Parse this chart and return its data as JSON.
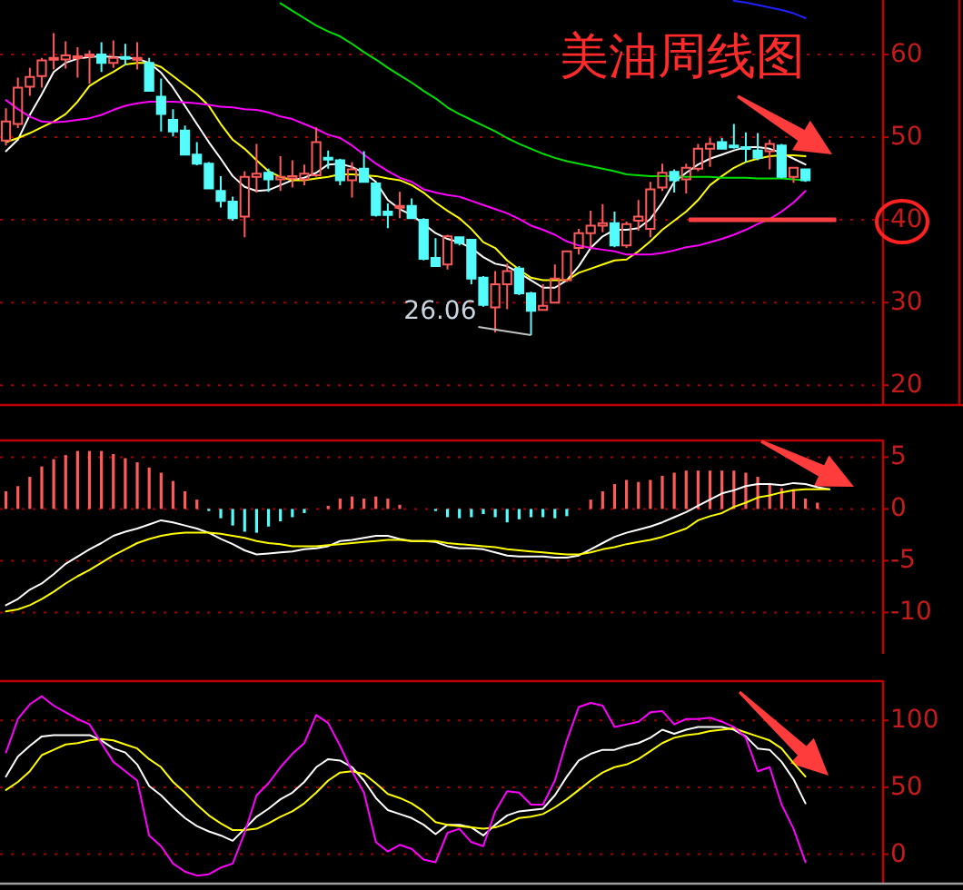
{
  "chart_data": [
    {
      "type": "candlestick",
      "title": "美油周线图",
      "tick_labels": "y",
      "grid": "y",
      "ylim": [
        17.6,
        66.6
      ],
      "yticks": [
        20,
        30,
        40,
        50,
        60
      ],
      "categories": [
        null,
        null,
        null,
        null,
        null,
        null,
        null,
        null,
        null,
        null,
        null,
        null,
        null,
        null,
        null,
        null,
        null,
        null,
        null,
        null,
        null,
        null,
        null,
        null,
        null,
        null,
        null,
        null,
        null,
        null,
        null,
        null,
        null,
        null,
        null,
        null,
        null,
        null,
        null,
        null,
        null,
        null,
        null,
        null,
        null,
        null,
        null,
        null,
        null,
        null,
        null,
        null,
        null,
        null,
        null,
        null,
        null,
        null,
        null,
        null,
        null,
        null,
        null,
        null,
        null,
        null,
        null,
        null,
        null,
        null,
        null,
        null,
        null,
        null
      ],
      "ohlc": [
        [
          49.6,
          53.5,
          49.0,
          51.9
        ],
        [
          51.6,
          57.2,
          51.1,
          56.0
        ],
        [
          56.1,
          58.4,
          55.0,
          57.3
        ],
        [
          57.4,
          59.6,
          56.0,
          59.3
        ],
        [
          59.5,
          62.6,
          58.2,
          59.6
        ],
        [
          59.4,
          61.6,
          58.3,
          59.9
        ],
        [
          59.6,
          60.9,
          57.2,
          59.8
        ],
        [
          59.8,
          60.5,
          56.5,
          60.0
        ],
        [
          60.0,
          61.5,
          57.9,
          59.0
        ],
        [
          59.0,
          61.7,
          58.4,
          59.6
        ],
        [
          59.7,
          61.3,
          58.7,
          59.5
        ],
        [
          59.4,
          61.5,
          58.2,
          59.6
        ],
        [
          59.0,
          59.6,
          55.5,
          55.6
        ],
        [
          54.9,
          57.1,
          50.7,
          52.8
        ],
        [
          52.1,
          53.4,
          50.1,
          50.7
        ],
        [
          50.8,
          51.4,
          47.8,
          47.9
        ],
        [
          47.9,
          49.4,
          46.6,
          46.8
        ],
        [
          46.8,
          47.0,
          43.7,
          43.8
        ],
        [
          43.5,
          45.3,
          41.5,
          42.3
        ],
        [
          42.2,
          42.8,
          39.9,
          40.2
        ],
        [
          40.4,
          45.9,
          37.9,
          45.2
        ],
        [
          45.2,
          49.2,
          43.3,
          45.6
        ],
        [
          45.7,
          46.2,
          43.4,
          44.9
        ],
        [
          44.9,
          47.7,
          43.5,
          45.2
        ],
        [
          45.0,
          47.2,
          43.9,
          45.3
        ],
        [
          44.9,
          46.7,
          44.2,
          45.6
        ],
        [
          45.4,
          51.2,
          45.2,
          49.4
        ],
        [
          47.5,
          48.4,
          46.2,
          47.3
        ],
        [
          47.2,
          47.4,
          44.2,
          44.8
        ],
        [
          44.8,
          47.0,
          42.7,
          46.1
        ],
        [
          46.2,
          48.3,
          44.5,
          44.6
        ],
        [
          44.4,
          44.6,
          40.4,
          40.6
        ],
        [
          41.0,
          42.0,
          39.0,
          40.6
        ],
        [
          41.5,
          43.4,
          40.2,
          41.7
        ],
        [
          41.7,
          42.6,
          40.1,
          40.2
        ],
        [
          40.0,
          40.2,
          35.1,
          35.3
        ],
        [
          35.4,
          37.8,
          34.3,
          34.4
        ],
        [
          34.6,
          38.2,
          34.0,
          38.0
        ],
        [
          37.9,
          38.0,
          36.9,
          37.2
        ],
        [
          37.6,
          37.7,
          32.2,
          32.9
        ],
        [
          33.0,
          33.2,
          29.5,
          29.7
        ],
        [
          29.4,
          33.8,
          26.4,
          32.2
        ],
        [
          32.2,
          34.7,
          29.2,
          33.8
        ],
        [
          34.1,
          34.4,
          30.9,
          31.1
        ],
        [
          31.1,
          31.3,
          26.06,
          29.0
        ],
        [
          29.1,
          32.2,
          29.1,
          29.6
        ],
        [
          30.0,
          34.6,
          30.0,
          32.9
        ],
        [
          32.7,
          36.3,
          32.5,
          36.2
        ],
        [
          36.6,
          38.9,
          35.8,
          38.4
        ],
        [
          38.4,
          41.1,
          36.6,
          39.3
        ],
        [
          39.3,
          41.9,
          38.5,
          39.6
        ],
        [
          39.6,
          41.0,
          36.7,
          36.9
        ],
        [
          36.9,
          39.8,
          36.6,
          39.5
        ],
        [
          39.9,
          42.4,
          38.7,
          40.4
        ],
        [
          38.9,
          44.6,
          37.9,
          43.7
        ],
        [
          43.9,
          46.8,
          43.5,
          45.7
        ],
        [
          45.8,
          46.1,
          43.3,
          44.8
        ],
        [
          44.9,
          46.8,
          43.2,
          46.3
        ],
        [
          46.2,
          49.2,
          45.9,
          48.6
        ],
        [
          48.6,
          49.9,
          46.4,
          49.2
        ],
        [
          49.4,
          49.9,
          48.5,
          48.6
        ],
        [
          49.0,
          51.6,
          48.6,
          48.8
        ],
        [
          48.8,
          50.6,
          47.0,
          48.6
        ],
        [
          48.4,
          50.5,
          47.2,
          47.5
        ],
        [
          48.3,
          49.7,
          46.1,
          49.2
        ],
        [
          49.0,
          49.2,
          45.0,
          45.2
        ],
        [
          45.2,
          46.4,
          44.5,
          46.3
        ],
        [
          46.1,
          46.1,
          44.6,
          44.8
        ],
        null,
        null,
        null,
        null,
        null,
        null
      ],
      "series": [
        {
          "type": "line",
          "color": "#ffffff",
          "values": [
            48.3,
            49.7,
            52.7,
            55.2,
            57.9,
            59.0,
            59.5,
            59.7,
            59.8,
            59.7,
            59.6,
            59.5,
            59.0,
            57.8,
            56.0,
            53.8,
            51.6,
            49.4,
            47.4,
            45.3,
            44.0,
            43.5,
            43.6,
            44.2,
            44.8,
            45.1,
            45.7,
            46.7,
            46.8,
            46.4,
            45.7,
            44.6,
            42.4,
            41.3,
            40.6,
            39.5,
            38.4,
            37.7,
            37.3,
            36.6,
            35.5,
            34.7,
            34.4,
            33.6,
            32.7,
            31.8,
            31.8,
            32.7,
            34.4,
            36.6,
            38.0,
            38.8,
            38.8,
            39.0,
            40.1,
            42.1,
            44.6,
            45.7,
            46.7,
            47.4,
            47.9,
            48.4,
            48.8,
            48.8,
            48.6,
            48.1,
            47.4,
            46.7,
            null,
            null,
            null,
            null,
            null,
            null
          ]
        },
        {
          "type": "line",
          "color": "#ffff00",
          "values": [
            49.4,
            49.9,
            50.5,
            51.2,
            51.9,
            52.8,
            54.3,
            56.2,
            57.1,
            57.9,
            58.8,
            59.0,
            59.0,
            58.5,
            57.4,
            56.3,
            55.2,
            53.8,
            51.6,
            49.7,
            48.6,
            47.2,
            45.9,
            45.2,
            44.8,
            44.8,
            45.0,
            45.2,
            45.5,
            45.5,
            45.4,
            45.3,
            45.0,
            44.8,
            44.2,
            43.3,
            42.1,
            41.1,
            40.2,
            38.9,
            37.3,
            36.6,
            35.1,
            34.0,
            33.0,
            32.7,
            32.7,
            32.7,
            33.6,
            34.1,
            34.6,
            35.1,
            35.2,
            36.2,
            37.4,
            38.8,
            39.9,
            41.0,
            42.4,
            44.2,
            45.3,
            46.3,
            47.0,
            47.4,
            47.7,
            47.8,
            47.8,
            47.7,
            null,
            null,
            null,
            null,
            null,
            null
          ]
        },
        {
          "type": "line",
          "color": "#ff00ff",
          "values": [
            54.5,
            53.4,
            52.5,
            51.9,
            51.8,
            51.9,
            52.1,
            52.3,
            52.7,
            53.3,
            53.8,
            54.1,
            54.3,
            54.3,
            54.3,
            54.2,
            54.1,
            53.9,
            53.7,
            53.6,
            53.4,
            53.3,
            53.0,
            52.5,
            52.2,
            51.6,
            51.0,
            50.3,
            49.9,
            49.0,
            47.9,
            46.8,
            45.9,
            45.1,
            44.6,
            43.7,
            43.3,
            43.0,
            42.8,
            42.3,
            41.8,
            41.3,
            40.8,
            40.1,
            39.3,
            38.8,
            38.2,
            37.4,
            36.9,
            36.6,
            36.4,
            36.2,
            35.8,
            35.8,
            35.8,
            36.0,
            36.3,
            36.7,
            36.9,
            37.3,
            37.7,
            38.2,
            38.8,
            39.5,
            40.1,
            41.0,
            42.1,
            43.5,
            null,
            null,
            null,
            null,
            null,
            null
          ]
        },
        {
          "type": "line",
          "color": "#00e000",
          "values": [
            null,
            null,
            null,
            null,
            null,
            null,
            null,
            null,
            null,
            null,
            null,
            null,
            null,
            null,
            null,
            null,
            null,
            null,
            null,
            null,
            null,
            null,
            null,
            66.2,
            65.3,
            64.4,
            63.5,
            62.8,
            62.2,
            61.3,
            60.3,
            59.4,
            58.4,
            57.5,
            56.6,
            55.6,
            54.7,
            53.6,
            52.8,
            52.1,
            51.4,
            50.7,
            49.9,
            49.2,
            48.6,
            48.0,
            47.5,
            47.1,
            46.8,
            46.5,
            46.2,
            45.9,
            45.5,
            45.4,
            45.3,
            45.3,
            45.3,
            45.2,
            45.2,
            45.2,
            45.1,
            45.1,
            45.1,
            45.0,
            45.0,
            45.0,
            44.9,
            44.8,
            null,
            null,
            null,
            null,
            null,
            null
          ]
        },
        {
          "type": "line",
          "color": "#2020ff",
          "values": [
            null,
            null,
            null,
            null,
            null,
            null,
            null,
            null,
            null,
            null,
            null,
            null,
            null,
            null,
            null,
            null,
            null,
            null,
            null,
            null,
            null,
            null,
            null,
            null,
            null,
            null,
            null,
            null,
            null,
            null,
            null,
            null,
            null,
            null,
            null,
            null,
            null,
            null,
            null,
            null,
            null,
            null,
            null,
            null,
            null,
            null,
            null,
            null,
            null,
            null,
            null,
            null,
            null,
            null,
            null,
            null,
            null,
            null,
            null,
            null,
            null,
            66.5,
            66.3,
            66.0,
            65.7,
            65.4,
            65.0,
            64.4,
            null,
            null,
            null,
            null,
            null,
            null
          ]
        }
      ],
      "ref_lines": [
        {
          "axis": "y",
          "value": 40,
          "color": "#ff4040"
        }
      ],
      "annotations": [
        "26.06"
      ]
    },
    {
      "type": "bar",
      "tick_labels": "y",
      "grid": "y",
      "ylim": [
        -14,
        6.7
      ],
      "yticks": [
        -10,
        -5,
        0,
        5
      ],
      "categories": [
        null,
        null,
        null,
        null,
        null,
        null,
        null,
        null,
        null,
        null,
        null,
        null,
        null,
        null,
        null,
        null,
        null,
        null,
        null,
        null,
        null,
        null,
        null,
        null,
        null,
        null,
        null,
        null,
        null,
        null,
        null,
        null,
        null,
        null,
        null,
        null,
        null,
        null,
        null,
        null,
        null,
        null,
        null,
        null,
        null,
        null,
        null,
        null,
        null,
        null,
        null,
        null,
        null,
        null,
        null,
        null,
        null,
        null,
        null,
        null,
        null,
        null,
        null,
        null,
        null,
        null,
        null,
        null,
        null,
        null,
        null,
        null,
        null,
        null
      ],
      "series": [
        {
          "type": "bar",
          "values": [
            1.7,
            2.2,
            3.1,
            4.1,
            4.8,
            5.2,
            5.6,
            5.6,
            5.6,
            5.3,
            4.9,
            4.5,
            4.0,
            3.5,
            2.7,
            1.7,
            0.9,
            -0.2,
            -0.9,
            -1.6,
            -2.2,
            -2.3,
            -1.7,
            -1.2,
            -0.8,
            -0.4,
            null,
            0.3,
            1.0,
            1.2,
            1.0,
            1.2,
            1.0,
            0.4,
            null,
            null,
            -0.2,
            -0.8,
            -0.9,
            -0.8,
            -0.5,
            -0.8,
            -1.3,
            -1.0,
            -0.8,
            -0.8,
            -0.9,
            -0.7,
            null,
            0.9,
            1.7,
            2.4,
            2.8,
            2.6,
            2.8,
            3.2,
            3.5,
            3.7,
            3.7,
            3.7,
            3.7,
            3.7,
            3.5,
            3.1,
            2.5,
            2.0,
            1.9,
            1.0,
            0.6,
            null,
            null,
            null,
            null,
            null
          ],
          "colors": [
            "#ff5a5a",
            "#ff5a5a",
            "#ff5a5a",
            "#ff5a5a",
            "#ff5a5a",
            "#ff5a5a",
            "#ff5a5a",
            "#ff5a5a",
            "#ff5a5a",
            "#ff5a5a",
            "#ff5a5a",
            "#ff5a5a",
            "#ff5a5a",
            "#ff5a5a",
            "#ff5a5a",
            "#ff5a5a",
            "#ff5a5a",
            "#54fcfc",
            "#54fcfc",
            "#54fcfc",
            "#54fcfc",
            "#54fcfc",
            "#54fcfc",
            "#54fcfc",
            "#54fcfc",
            "#54fcfc",
            null,
            "#ff5a5a",
            "#ff5a5a",
            "#ff5a5a",
            "#ff5a5a",
            "#ff5a5a",
            "#ff5a5a",
            "#ff5a5a",
            null,
            null,
            "#54fcfc",
            "#54fcfc",
            "#54fcfc",
            "#54fcfc",
            "#54fcfc",
            "#54fcfc",
            "#54fcfc",
            "#54fcfc",
            "#54fcfc",
            "#54fcfc",
            "#54fcfc",
            "#54fcfc",
            null,
            "#ff5a5a",
            "#ff5a5a",
            "#ff5a5a",
            "#ff5a5a",
            "#ff5a5a",
            "#ff5a5a",
            "#ff5a5a",
            "#ff5a5a",
            "#ff5a5a",
            "#ff5a5a",
            "#ff5a5a",
            "#ff5a5a",
            "#ff5a5a",
            "#ff5a5a",
            "#ff5a5a",
            "#ff5a5a",
            "#ff5a5a",
            "#ff5a5a",
            "#ff5a5a",
            "#ff5a5a",
            null,
            null,
            null,
            null,
            null
          ]
        },
        {
          "type": "line",
          "color": "#ffffff",
          "values": [
            -9.3,
            -8.7,
            -7.8,
            -7.2,
            -6.3,
            -5.3,
            -4.6,
            -3.9,
            -3.3,
            -2.6,
            -2.2,
            -1.9,
            -1.5,
            -1.1,
            -1.3,
            -1.6,
            -1.9,
            -2.3,
            -2.9,
            -3.4,
            -4.0,
            -4.4,
            -4.3,
            -4.2,
            -4.1,
            -3.9,
            -3.8,
            -3.6,
            -3.1,
            -3.0,
            -2.8,
            -2.6,
            -2.6,
            -2.9,
            -3.1,
            -3.1,
            -3.2,
            -3.6,
            -3.8,
            -3.8,
            -3.9,
            -4.2,
            -4.5,
            -4.6,
            -4.6,
            -4.6,
            -4.7,
            -4.7,
            -4.5,
            -3.9,
            -3.3,
            -2.7,
            -2.3,
            -2.0,
            -1.7,
            -1.3,
            -0.8,
            -0.3,
            0.3,
            0.9,
            1.5,
            1.8,
            2.2,
            2.4,
            2.4,
            2.3,
            2.5,
            2.4,
            2.1,
            1.9,
            null,
            null,
            null,
            null
          ]
        },
        {
          "type": "line",
          "color": "#ffff00",
          "values": [
            -9.9,
            -9.7,
            -9.3,
            -8.7,
            -8.0,
            -7.2,
            -6.5,
            -5.9,
            -5.2,
            -4.5,
            -3.9,
            -3.3,
            -2.9,
            -2.6,
            -2.4,
            -2.3,
            -2.3,
            -2.3,
            -2.4,
            -2.6,
            -2.8,
            -3.1,
            -3.3,
            -3.4,
            -3.6,
            -3.6,
            -3.6,
            -3.5,
            -3.4,
            -3.3,
            -3.2,
            -3.1,
            -3.0,
            -3.0,
            -3.1,
            -3.1,
            -3.1,
            -3.3,
            -3.4,
            -3.5,
            -3.6,
            -3.7,
            -3.9,
            -4.0,
            -4.1,
            -4.2,
            -4.3,
            -4.4,
            -4.4,
            -4.2,
            -3.9,
            -3.7,
            -3.4,
            -3.2,
            -3.0,
            -2.7,
            -2.3,
            -1.9,
            -1.1,
            -0.7,
            -0.4,
            0.2,
            0.6,
            1.1,
            1.3,
            1.6,
            1.8,
            1.9,
            1.9,
            1.9,
            null,
            null,
            null,
            null
          ]
        }
      ]
    },
    {
      "type": "line",
      "tick_labels": "y",
      "grid": "y",
      "ylim": [
        -22,
        130
      ],
      "yticks": [
        0,
        50,
        100
      ],
      "categories": [
        null,
        null,
        null,
        null,
        null,
        null,
        null,
        null,
        null,
        null,
        null,
        null,
        null,
        null,
        null,
        null,
        null,
        null,
        null,
        null,
        null,
        null,
        null,
        null,
        null,
        null,
        null,
        null,
        null,
        null,
        null,
        null,
        null,
        null,
        null,
        null,
        null,
        null,
        null,
        null,
        null,
        null,
        null,
        null,
        null,
        null,
        null,
        null,
        null,
        null,
        null,
        null,
        null,
        null,
        null,
        null,
        null,
        null,
        null,
        null,
        null,
        null,
        null,
        null,
        null,
        null,
        null,
        null,
        null,
        null,
        null,
        null,
        null,
        null
      ],
      "series": [
        {
          "color": "#ffffff",
          "values": [
            58,
            73,
            81,
            88,
            89,
            89,
            89,
            89,
            85,
            79,
            76,
            67,
            51,
            44,
            35,
            27,
            21,
            17,
            14,
            10,
            19,
            28,
            34,
            41,
            46,
            54,
            65,
            71,
            70,
            65,
            55,
            42,
            33,
            30,
            27,
            22,
            15,
            22,
            22,
            20,
            14,
            22,
            29,
            32,
            33,
            34,
            44,
            58,
            70,
            75,
            78,
            78,
            81,
            83,
            87,
            93,
            90,
            93,
            95,
            95,
            95,
            93,
            88,
            79,
            78,
            69,
            56,
            38,
            null,
            null,
            null,
            null,
            null,
            null
          ]
        },
        {
          "color": "#ffff00",
          "values": [
            48,
            54,
            62,
            74,
            78,
            82,
            83,
            85,
            86,
            85,
            82,
            79,
            71,
            65,
            54,
            46,
            37,
            29,
            23,
            18,
            18,
            19,
            23,
            28,
            32,
            38,
            46,
            55,
            61,
            62,
            60,
            53,
            45,
            42,
            38,
            32,
            24,
            22,
            21,
            20,
            19,
            20,
            23,
            27,
            28,
            30,
            35,
            41,
            48,
            55,
            61,
            65,
            67,
            71,
            77,
            83,
            87,
            89,
            90,
            92,
            93,
            94,
            91,
            88,
            85,
            79,
            68,
            58,
            null,
            null,
            null,
            null,
            null,
            null
          ]
        },
        {
          "color": "#ff00ff",
          "values": [
            76,
            101,
            112,
            118,
            111,
            106,
            101,
            97,
            83,
            69,
            62,
            55,
            14,
            6,
            -7,
            -13,
            -16,
            -15,
            -10,
            -7,
            16,
            44,
            53,
            65,
            75,
            83,
            104,
            98,
            81,
            62,
            46,
            9,
            2,
            7,
            4,
            -4,
            -6,
            16,
            19,
            9,
            6,
            32,
            47,
            46,
            37,
            37,
            55,
            85,
            110,
            113,
            111,
            95,
            97,
            99,
            106,
            107,
            97,
            101,
            101,
            102,
            99,
            95,
            87,
            62,
            65,
            37,
            19,
            -6,
            null,
            null,
            null,
            null,
            null,
            null
          ]
        }
      ]
    }
  ]
}
